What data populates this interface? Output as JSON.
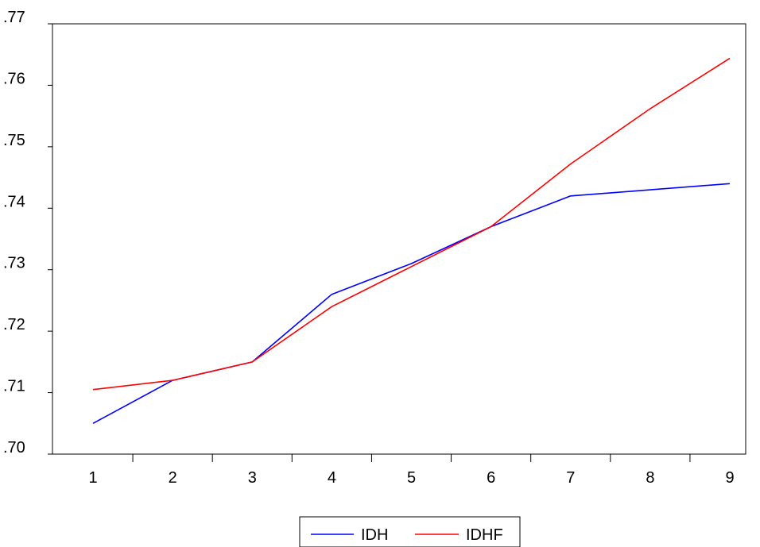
{
  "chart_data": {
    "type": "line",
    "title": "",
    "xlabel": "",
    "ylabel": "",
    "x": [
      1,
      2,
      3,
      4,
      5,
      6,
      7,
      8,
      9
    ],
    "x_tick_labels": [
      "1",
      "2",
      "3",
      "4",
      "5",
      "6",
      "7",
      "8",
      "9"
    ],
    "ylim": [
      0.7,
      0.77
    ],
    "y_ticks": [
      0.7,
      0.71,
      0.72,
      0.73,
      0.74,
      0.75,
      0.76,
      0.77
    ],
    "y_tick_labels": [
      ".70",
      ".71",
      ".72",
      ".73",
      ".74",
      ".75",
      ".76",
      ".77"
    ],
    "grid": false,
    "legend_position": "bottom-center",
    "series": [
      {
        "name": "IDH",
        "color": "#0000ff",
        "values": [
          0.705,
          0.712,
          0.715,
          0.726,
          0.731,
          0.737,
          0.742,
          0.743,
          0.744
        ]
      },
      {
        "name": "IDHF",
        "color": "#ff0000",
        "values": [
          0.7105,
          0.712,
          0.715,
          0.724,
          0.7305,
          0.737,
          0.7472,
          0.7562,
          0.7644
        ]
      }
    ]
  }
}
